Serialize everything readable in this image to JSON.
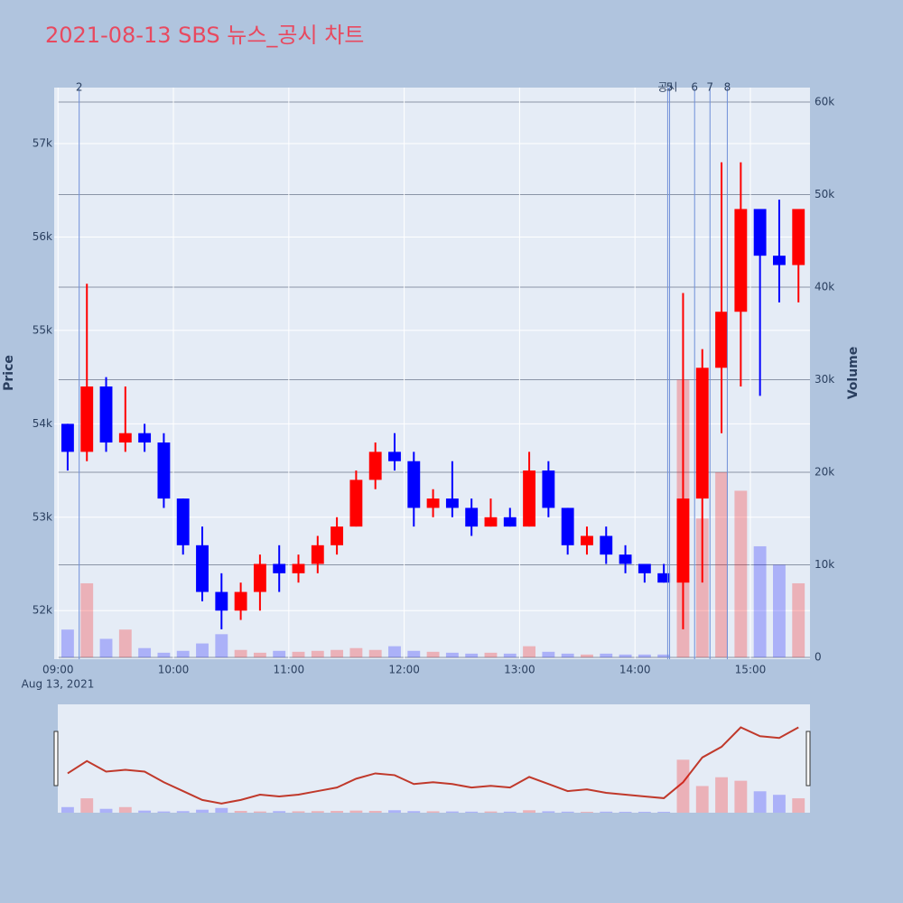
{
  "chart_data": {
    "type": "candlestick",
    "title": "2021-08-13 SBS 뉴스_공시 차트",
    "x_date_label": "Aug 13, 2021",
    "y_label": "Price",
    "y2_label": "Volume",
    "up_color": "#ff0000",
    "down_color": "#0000ff",
    "x": [
      "09:00",
      "09:10",
      "09:20",
      "09:30",
      "09:40",
      "09:50",
      "10:00",
      "10:10",
      "10:20",
      "10:30",
      "10:40",
      "10:50",
      "11:00",
      "11:10",
      "11:20",
      "11:30",
      "11:40",
      "11:50",
      "12:00",
      "12:10",
      "12:20",
      "12:30",
      "12:40",
      "12:50",
      "13:00",
      "13:10",
      "13:20",
      "13:30",
      "13:40",
      "13:50",
      "14:00",
      "14:10",
      "14:20",
      "14:30",
      "14:40",
      "14:50",
      "15:00",
      "15:10",
      "15:20"
    ],
    "open": [
      54000,
      53700,
      54400,
      53800,
      53900,
      53800,
      53200,
      52700,
      52200,
      52000,
      52200,
      52500,
      52400,
      52500,
      52700,
      52900,
      53400,
      53700,
      53600,
      53100,
      53200,
      53100,
      52900,
      53000,
      52900,
      53500,
      53100,
      52700,
      52800,
      52600,
      52500,
      52400,
      52300,
      53200,
      54600,
      55200,
      56300,
      55800,
      55700
    ],
    "high": [
      54000,
      55500,
      54500,
      54400,
      54000,
      53900,
      53200,
      52900,
      52400,
      52300,
      52600,
      52700,
      52600,
      52800,
      53000,
      53500,
      53800,
      53900,
      53700,
      53300,
      53600,
      53200,
      53200,
      53100,
      53700,
      53600,
      53100,
      52900,
      52900,
      52700,
      52500,
      52500,
      55400,
      54800,
      56800,
      56800,
      56300,
      56400,
      56300
    ],
    "low": [
      53500,
      53600,
      53700,
      53700,
      53700,
      53100,
      52600,
      52100,
      51800,
      51900,
      52000,
      52200,
      52300,
      52400,
      52600,
      52900,
      53300,
      53500,
      52900,
      53000,
      53000,
      52800,
      52900,
      52900,
      52900,
      53000,
      52600,
      52600,
      52500,
      52400,
      52300,
      52300,
      51800,
      52300,
      53900,
      54400,
      54300,
      55300,
      55300
    ],
    "close": [
      53700,
      54400,
      53800,
      53900,
      53800,
      53200,
      52700,
      52200,
      52000,
      52200,
      52500,
      52400,
      52500,
      52700,
      52900,
      53400,
      53700,
      53600,
      53100,
      53200,
      53100,
      52900,
      53000,
      52900,
      53500,
      53100,
      52700,
      52800,
      52600,
      52500,
      52400,
      52300,
      53200,
      54600,
      55200,
      56300,
      55800,
      55700,
      56300
    ],
    "volume": [
      3000,
      8000,
      2000,
      3000,
      1000,
      500,
      700,
      1500,
      2500,
      800,
      500,
      700,
      600,
      700,
      800,
      1000,
      800,
      1200,
      700,
      600,
      500,
      400,
      500,
      400,
      1200,
      600,
      400,
      300,
      400,
      300,
      300,
      300,
      30000,
      15000,
      20000,
      18000,
      12000,
      10000,
      8000
    ],
    "xlim": [
      "08:58",
      "15:31"
    ],
    "xticks": [
      "09:00",
      "10:00",
      "11:00",
      "12:00",
      "13:00",
      "14:00",
      "15:00"
    ],
    "ylim": [
      51480,
      57600
    ],
    "yticks": [
      {
        "value": 52000,
        "label": "52k"
      },
      {
        "value": 53000,
        "label": "53k"
      },
      {
        "value": 54000,
        "label": "54k"
      },
      {
        "value": 55000,
        "label": "55k"
      },
      {
        "value": 56000,
        "label": "56k"
      },
      {
        "value": 57000,
        "label": "57k"
      }
    ],
    "y2lim": [
      -200,
      61560
    ],
    "y2ticks": [
      0,
      {
        "value": 10000,
        "label": "10k"
      },
      {
        "value": 20000,
        "label": "20k"
      },
      {
        "value": 30000,
        "label": "30k"
      },
      {
        "value": 40000,
        "label": "40k"
      },
      {
        "value": 50000,
        "label": "50k"
      },
      {
        "value": 60000,
        "label": "60k"
      }
    ],
    "annotations": [
      {
        "x": "09:11",
        "text": "2"
      },
      {
        "x": "14:17",
        "text": "공시"
      },
      {
        "x": "14:18",
        "text": "5"
      },
      {
        "x": "14:31",
        "text": "6"
      },
      {
        "x": "14:39",
        "text": "7"
      },
      {
        "x": "14:48",
        "text": "8"
      }
    ]
  }
}
